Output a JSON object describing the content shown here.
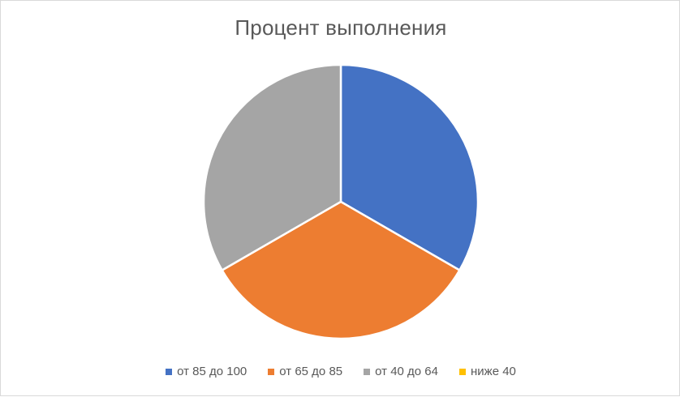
{
  "chart_data": {
    "type": "pie",
    "title": "Процент выполнения",
    "categories": [
      "от 85 до 100",
      "от 65 до 85",
      "от 40 до 64",
      "ниже 40"
    ],
    "values": [
      33.3,
      33.3,
      33.3,
      0
    ],
    "colors": [
      "#4472c4",
      "#ed7d31",
      "#a5a5a5",
      "#ffc000"
    ],
    "legend_position": "bottom"
  }
}
